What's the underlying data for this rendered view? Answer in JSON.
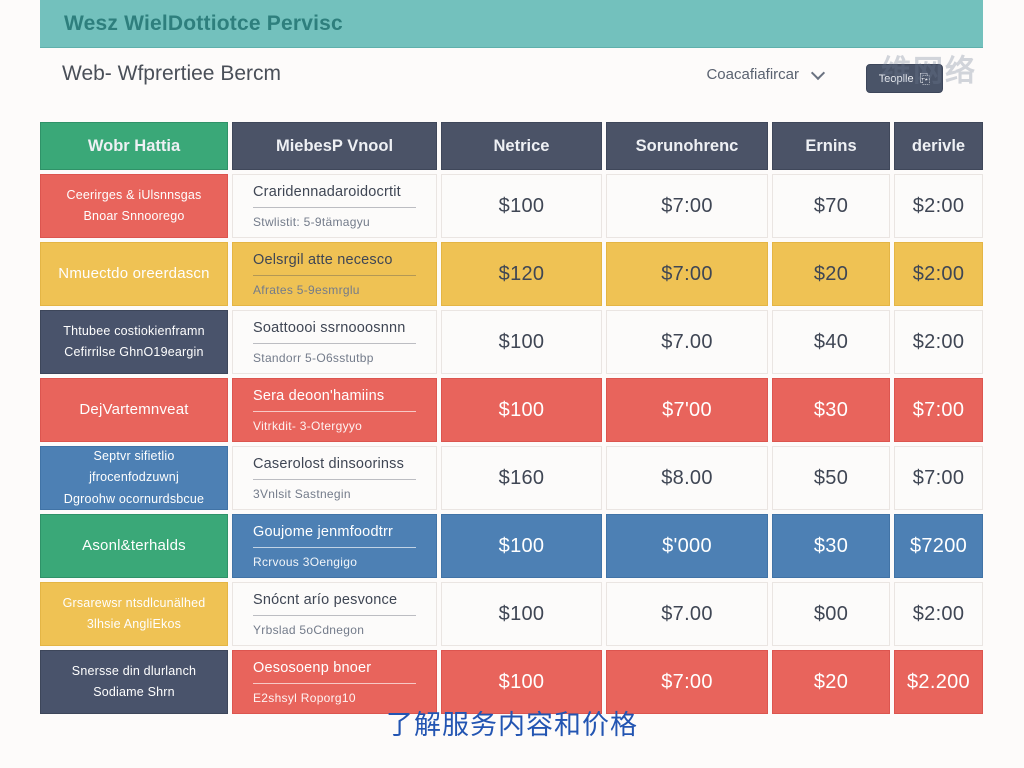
{
  "app_bar": {
    "title": "Wesz WielDottiotce Pervisc"
  },
  "toolbar": {
    "heading": "Web- Wfprertiee Bercm",
    "dropdown_label": "Coacafiafircar",
    "button_label": "Teoplle",
    "button_icon": "⎘",
    "watermark": "维网络"
  },
  "colors": {
    "app_bar_bg": "#73c1bd",
    "header_cell_bg": "#4b5367",
    "green": "#3aa878",
    "red": "#e8645c",
    "yellow": "#efc254",
    "blue": "#4d80b4",
    "slate": "#49536b",
    "caption_blue": "#2355b2"
  },
  "table": {
    "headers": [
      "Wobr Hattia",
      "MiebesP Vnool",
      "Netrice",
      "Sorunohrenc",
      "Ernins",
      "derivle"
    ],
    "rows": [
      {
        "service": {
          "line1": "Ceerirges & iUlsnnsgas",
          "line2": "Bnoar Snnoorego"
        },
        "desc": {
          "title": "Craridennadaroidocrtit",
          "subtitle": "Stwlistit: 5-9tämagyu"
        },
        "prices": [
          "$100",
          "$7:00",
          "$70",
          "$2:00"
        ]
      },
      {
        "service": {
          "line1": "Nmuectdo oreerdascn",
          "line2": ""
        },
        "desc": {
          "title": "Oelsrgil atte necesco",
          "subtitle": "Afrates 5-9esmrglu"
        },
        "prices": [
          "$120",
          "$7:00",
          "$20",
          "$2:00"
        ]
      },
      {
        "service": {
          "line1": "Thtubee costiokienframn",
          "line2": "Cefirrilse GhnO19eargin"
        },
        "desc": {
          "title": "Soattoooi ssrnooosnnn",
          "subtitle": "Standorr 5-O6sstutbp"
        },
        "prices": [
          "$100",
          "$7.00",
          "$40",
          "$2:00"
        ]
      },
      {
        "service": {
          "line1": "DejVartemnveat",
          "line2": ""
        },
        "desc": {
          "title": "Sera deoon'hamiins",
          "subtitle": "Vitrkdit- 3-Otergyyo"
        },
        "prices": [
          "$100",
          "$7'00",
          "$30",
          "$7:00"
        ]
      },
      {
        "service": {
          "line1": "Septvr sifietlio jfrocenfodzuwnj",
          "line2": "Dgroohw ocornurdsbcue"
        },
        "desc": {
          "title": "Caserolost dinsoorinss",
          "subtitle": "3Vnlsit Sastnegin"
        },
        "prices": [
          "$160",
          "$8.00",
          "$50",
          "$7:00"
        ]
      },
      {
        "service": {
          "line1": "Asonl&terhalds",
          "line2": ""
        },
        "desc": {
          "title": "Goujome jenmfoodtrr",
          "subtitle": "Rcrvous 3Oengigo"
        },
        "prices": [
          "$100",
          "$'000",
          "$30",
          "$7200"
        ]
      },
      {
        "service": {
          "line1": "Grsarewsr ntsdlcunälhed",
          "line2": "3lhsie AngliEkos"
        },
        "desc": {
          "title": "Snócnt arío pesvonce",
          "subtitle": "Yrbslad 5oCdnegon"
        },
        "prices": [
          "$100",
          "$7.00",
          "$00",
          "$2:00"
        ]
      },
      {
        "service": {
          "line1": "Snersse din dlurlanch",
          "line2": "Sodiame Shrn"
        },
        "desc": {
          "title": "Oesosoenp bnoer",
          "subtitle": "E2shsyl Roporg10"
        },
        "prices": [
          "$100",
          "$7:00",
          "$20",
          "$2.200"
        ]
      }
    ]
  },
  "footer": {
    "caption": "了解服务内容和价格"
  }
}
